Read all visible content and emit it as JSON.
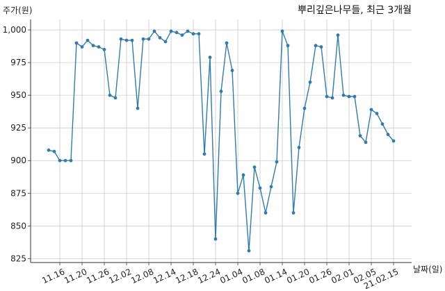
{
  "chart_data": {
    "type": "line",
    "title": "뿌리깊은나무들, 최근 3개월",
    "xlabel": "날짜(일)",
    "ylabel": "주가(원)",
    "ylim": [
      822,
      1008
    ],
    "y_ticks": [
      825,
      850,
      875,
      900,
      925,
      950,
      975,
      1000
    ],
    "y_tick_labels": [
      "825",
      "850",
      "875",
      "900",
      "925",
      "950",
      "975",
      "1,000"
    ],
    "x_tick_labels": [
      "11.16",
      "11.20",
      "11.26",
      "12.02",
      "12.08",
      "12.14",
      "12.18",
      "12.24",
      "01.04",
      "01.08",
      "01.14",
      "01.20",
      "01.26",
      "02.01",
      "02.05",
      "21.02.15"
    ],
    "x_tick_index": [
      2,
      6,
      10,
      14,
      18,
      22,
      26,
      30,
      34,
      38,
      42,
      46,
      50,
      54,
      58,
      62
    ],
    "grid": true,
    "colors": {
      "line": "#2e7bad",
      "marker": "#2e7bad",
      "grid": "#cccccc",
      "axis": "#333333"
    },
    "series": [
      {
        "values": [
          908,
          907,
          900,
          900,
          900,
          990,
          987,
          992,
          988,
          987,
          985,
          950,
          948,
          993,
          992,
          992,
          940,
          993,
          993,
          999,
          994,
          991,
          999,
          998,
          996,
          999,
          997,
          997,
          905,
          979,
          840,
          953,
          990,
          969,
          875,
          889,
          831,
          895,
          879,
          860,
          880,
          899,
          999,
          988,
          860,
          910,
          940,
          960,
          988,
          987,
          949,
          948,
          996,
          950,
          949,
          949,
          919,
          914,
          939,
          936,
          928,
          920,
          915
        ]
      }
    ]
  }
}
